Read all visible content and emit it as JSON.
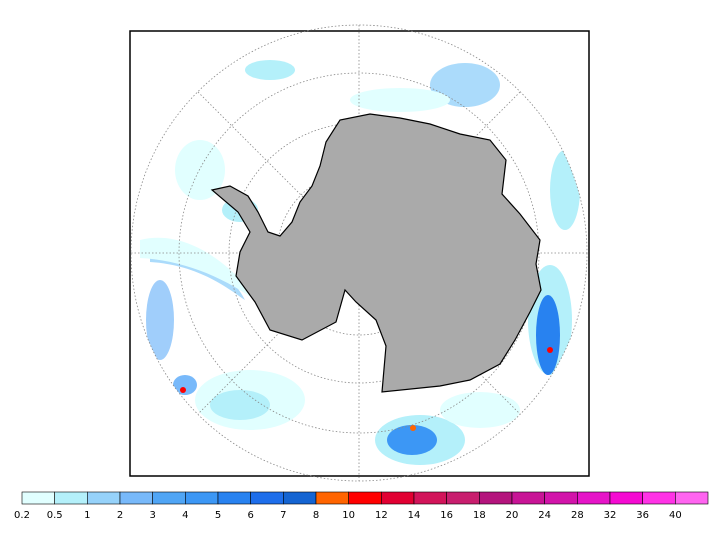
{
  "legend": {
    "labels": [
      0.2,
      0.5,
      1,
      2,
      3,
      4,
      5,
      6,
      7,
      8,
      10,
      12,
      14,
      16,
      18,
      20,
      24,
      28,
      32,
      36,
      40
    ],
    "colors": [
      "#e1ffff",
      "#b4f0fa",
      "#96d2fa",
      "#78b9fa",
      "#50a5f5",
      "#3c97f5",
      "#2882f0",
      "#1e6eeb",
      "#1464d2",
      "#ff6400",
      "#ff0000",
      "#e10032",
      "#d2145a",
      "#c81e6e",
      "#b4147d",
      "#c81496",
      "#d214aa",
      "#e614c8",
      "#f50ad2",
      "#ff32e6",
      "#ff64f0"
    ]
  }
}
